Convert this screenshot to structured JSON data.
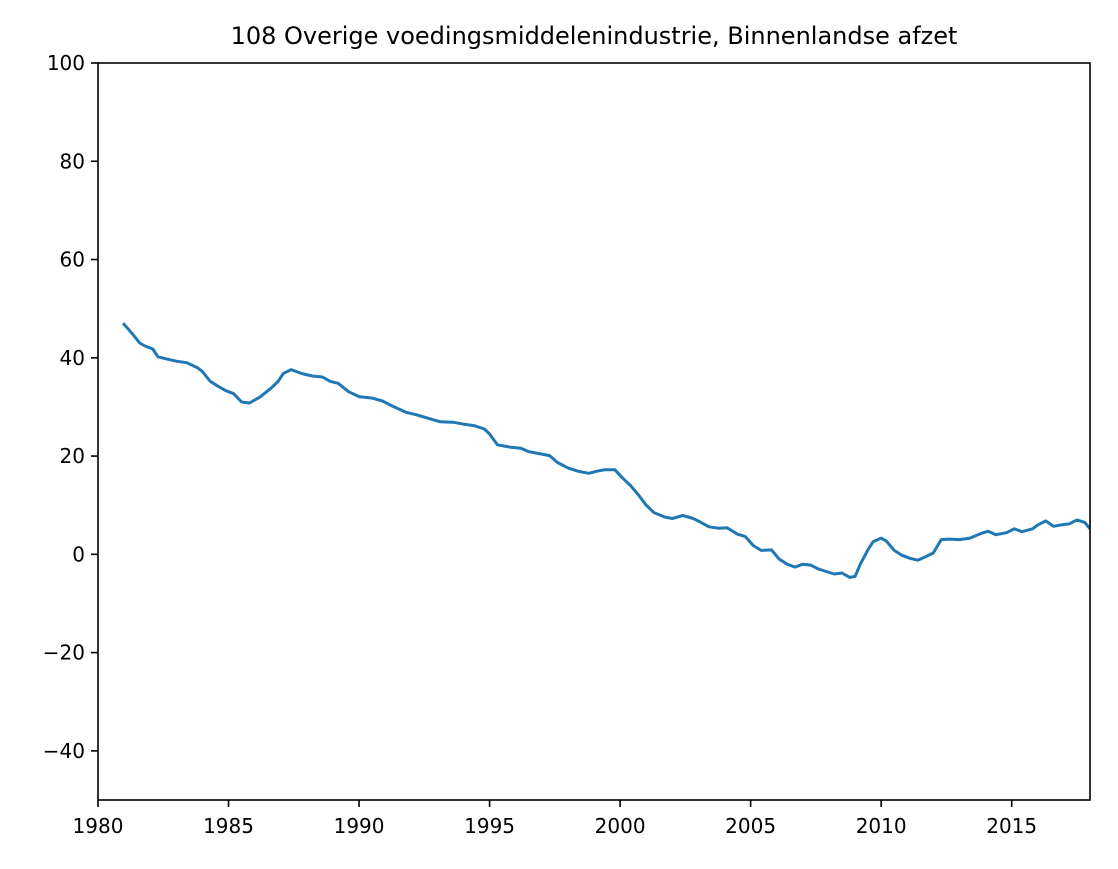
{
  "chart_data": {
    "type": "line",
    "title": "108 Overige voedingsmiddelenindustrie, Binnenlandse afzet",
    "xlabel": "",
    "ylabel": "",
    "xlim": [
      1980,
      2018
    ],
    "ylim": [
      -50,
      100
    ],
    "grid": false,
    "x_ticks": [
      1980,
      1985,
      1990,
      1995,
      2000,
      2005,
      2010,
      2015
    ],
    "y_ticks": [
      -40,
      -20,
      0,
      20,
      40,
      60,
      80,
      100
    ],
    "x_tick_labels": [
      "1980",
      "1985",
      "1990",
      "1995",
      "2000",
      "2005",
      "2010",
      "2015"
    ],
    "y_tick_labels": [
      "−40",
      "−20",
      "0",
      "20",
      "40",
      "60",
      "80",
      "100"
    ],
    "series": [
      {
        "color": "#1f77b4",
        "x": [
          1981.0,
          1981.3,
          1981.6,
          1981.8,
          1982.1,
          1982.3,
          1982.6,
          1983.0,
          1983.4,
          1983.8,
          1984.0,
          1984.3,
          1984.6,
          1984.9,
          1985.2,
          1985.5,
          1985.8,
          1986.2,
          1986.6,
          1986.9,
          1987.1,
          1987.4,
          1987.8,
          1988.2,
          1988.6,
          1988.9,
          1989.2,
          1989.6,
          1990.0,
          1990.5,
          1990.9,
          1991.3,
          1991.8,
          1992.2,
          1992.7,
          1993.1,
          1993.6,
          1994.0,
          1994.4,
          1994.8,
          1995.0,
          1995.3,
          1995.8,
          1996.2,
          1996.5,
          1996.9,
          1997.3,
          1997.6,
          1998.0,
          1998.4,
          1998.8,
          1999.1,
          1999.4,
          1999.8,
          2000.1,
          2000.4,
          2000.7,
          2001.0,
          2001.3,
          2001.7,
          2002.0,
          2002.4,
          2002.8,
          2003.1,
          2003.4,
          2003.8,
          2004.1,
          2004.5,
          2004.8,
          2005.1,
          2005.4,
          2005.8,
          2006.1,
          2006.4,
          2006.7,
          2007.0,
          2007.3,
          2007.6,
          2007.9,
          2008.2,
          2008.5,
          2008.8,
          2009.0,
          2009.2,
          2009.5,
          2009.7,
          2010.0,
          2010.2,
          2010.5,
          2010.8,
          2011.1,
          2011.4,
          2011.7,
          2012.0,
          2012.3,
          2012.6,
          2013.0,
          2013.4,
          2013.8,
          2014.1,
          2014.4,
          2014.8,
          2015.1,
          2015.4,
          2015.8,
          2016.0,
          2016.3,
          2016.6,
          2016.9,
          2017.2,
          2017.5,
          2017.8,
          2018.0
        ],
        "y": [
          46.8,
          45.0,
          43.0,
          42.4,
          41.8,
          40.2,
          39.8,
          39.3,
          39.0,
          38.0,
          37.2,
          35.2,
          34.2,
          33.3,
          32.7,
          31.0,
          30.8,
          32.0,
          33.7,
          35.2,
          36.8,
          37.6,
          36.8,
          36.3,
          36.1,
          35.2,
          34.8,
          33.1,
          32.1,
          31.8,
          31.2,
          30.1,
          28.9,
          28.4,
          27.6,
          27.0,
          26.9,
          26.5,
          26.2,
          25.5,
          24.5,
          22.3,
          21.8,
          21.6,
          20.9,
          20.5,
          20.1,
          18.7,
          17.6,
          16.9,
          16.5,
          16.9,
          17.2,
          17.2,
          15.5,
          14.0,
          12.1,
          10.0,
          8.5,
          7.6,
          7.3,
          7.9,
          7.3,
          6.5,
          5.6,
          5.3,
          5.4,
          4.1,
          3.6,
          1.8,
          0.8,
          0.9,
          -1.0,
          -2.0,
          -2.6,
          -2.0,
          -2.2,
          -3.0,
          -3.5,
          -4.0,
          -3.8,
          -4.7,
          -4.5,
          -2.0,
          1.0,
          2.6,
          3.3,
          2.7,
          0.8,
          -0.2,
          -0.8,
          -1.2,
          -0.5,
          0.3,
          3.0,
          3.1,
          3.0,
          3.3,
          4.2,
          4.7,
          4.0,
          4.4,
          5.2,
          4.6,
          5.2,
          6.0,
          6.8,
          5.7,
          6.0,
          6.2,
          7.0,
          6.5,
          5.2
        ]
      }
    ]
  }
}
